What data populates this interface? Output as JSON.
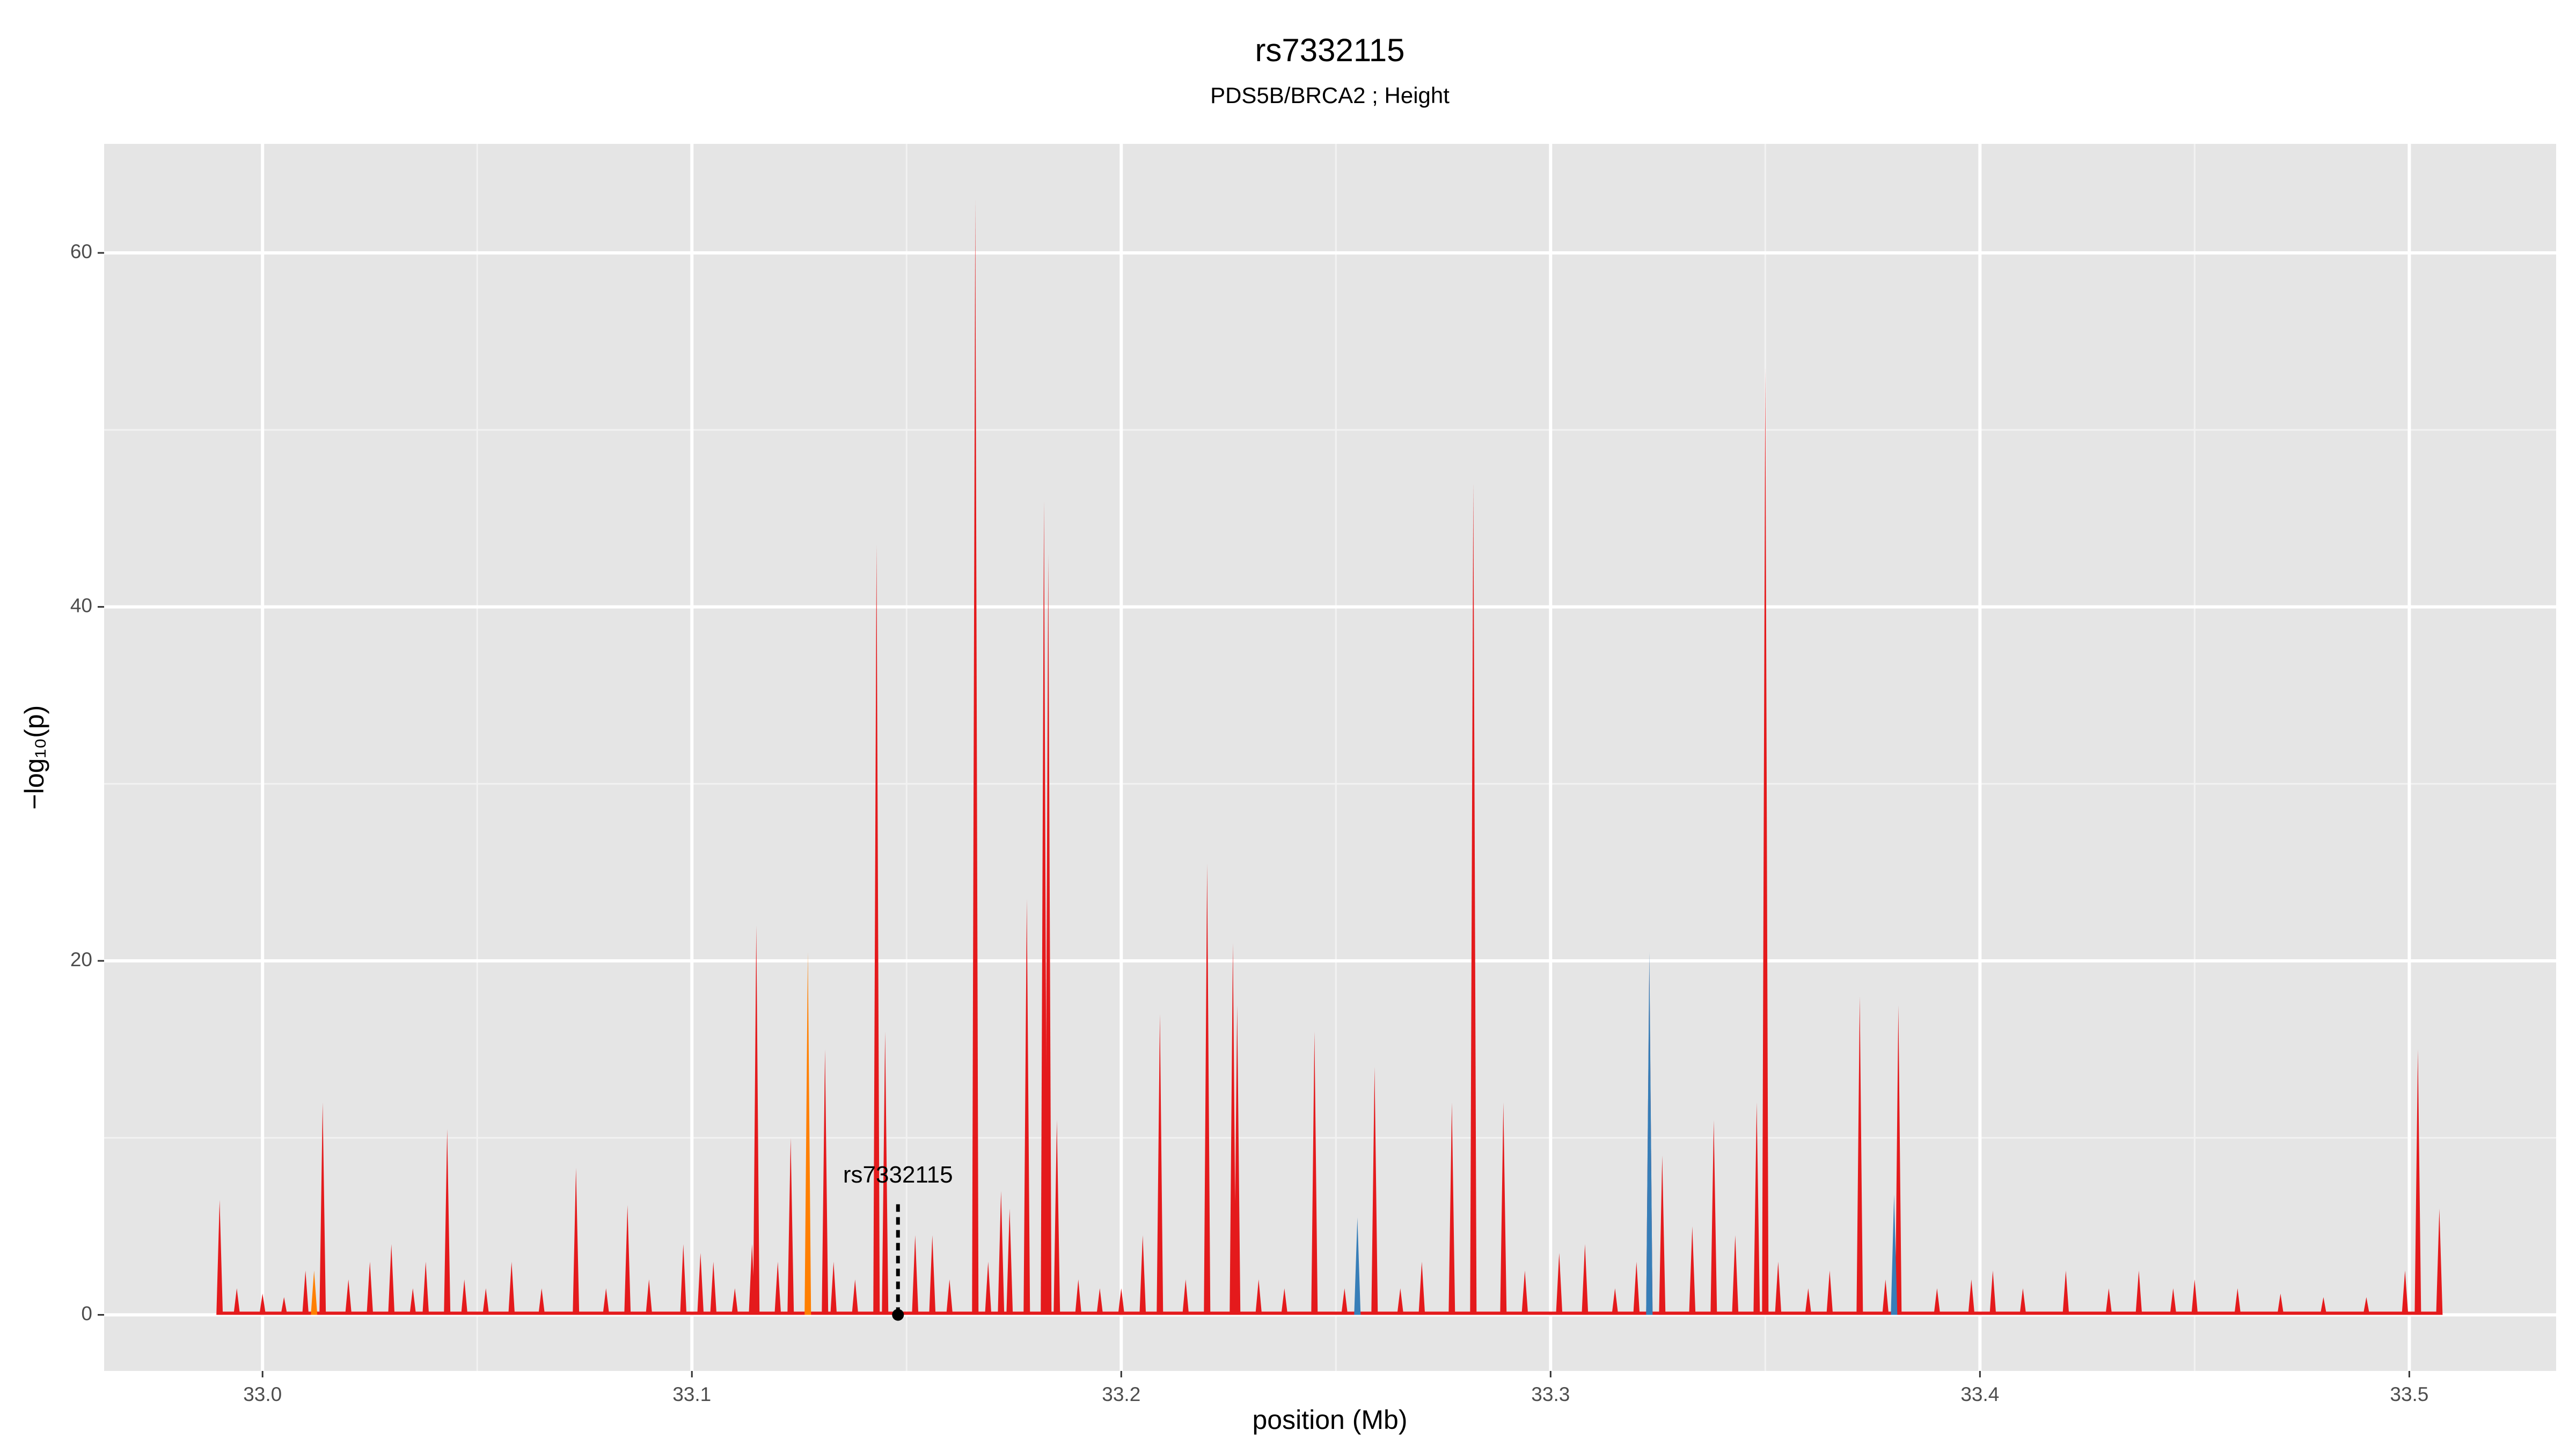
{
  "chart_data": {
    "type": "spike",
    "title": "rs7332115",
    "subtitle": "PDS5B/BRCA2 ; Height",
    "x_label": "position (Mb)",
    "y_label": "−log₁₀(p)",
    "xlim": [
      32.9631,
      33.5342
    ],
    "ylim": [
      -3.17,
      66.16
    ],
    "xticks": [
      {
        "value": 33.0,
        "label": "33.0"
      },
      {
        "value": 33.1,
        "label": "33.1"
      },
      {
        "value": 33.2,
        "label": "33.2"
      },
      {
        "value": 33.3,
        "label": "33.3"
      },
      {
        "value": 33.4,
        "label": "33.4"
      },
      {
        "value": 33.5,
        "label": "33.5"
      }
    ],
    "yticks": [
      0,
      20,
      40,
      60
    ],
    "grid": true,
    "annotation": {
      "label": "rs7332115",
      "x": 33.148,
      "y": 0
    },
    "series": [
      {
        "color": "#e41a1c",
        "x": [
          32.99,
          32.994,
          33.0,
          33.005,
          33.01,
          33.014,
          33.02,
          33.025,
          33.03,
          33.035,
          33.038,
          33.043,
          33.047,
          33.052,
          33.058,
          33.065,
          33.073,
          33.08,
          33.085,
          33.09,
          33.098,
          33.102,
          33.105,
          33.11,
          33.114,
          33.115,
          33.12,
          33.123,
          33.131,
          33.133,
          33.138,
          33.143,
          33.145,
          33.152,
          33.156,
          33.16,
          33.166,
          33.169,
          33.172,
          33.174,
          33.178,
          33.182,
          33.183,
          33.185,
          33.19,
          33.195,
          33.2,
          33.205,
          33.209,
          33.215,
          33.22,
          33.226,
          33.227,
          33.232,
          33.238,
          33.245,
          33.252,
          33.259,
          33.265,
          33.27,
          33.277,
          33.282,
          33.289,
          33.294,
          33.302,
          33.308,
          33.315,
          33.32,
          33.323,
          33.326,
          33.333,
          33.338,
          33.343,
          33.348,
          33.35,
          33.353,
          33.36,
          33.365,
          33.372,
          33.378,
          33.381,
          33.39,
          33.398,
          33.403,
          33.41,
          33.42,
          33.43,
          33.437,
          33.445,
          33.45,
          33.46,
          33.47,
          33.48,
          33.49,
          33.499,
          33.502,
          33.507
        ],
        "values": [
          6.5,
          1.5,
          1.2,
          1.0,
          2.5,
          12,
          2,
          3,
          4,
          1.5,
          3,
          10.5,
          2,
          1.5,
          3,
          1.5,
          8.3,
          1.5,
          6.2,
          2,
          4,
          3.5,
          3,
          1.5,
          4,
          22,
          3,
          10,
          15,
          3,
          2,
          43.5,
          16,
          4.5,
          4.5,
          2,
          63,
          3,
          7,
          6,
          23.5,
          46,
          43,
          11,
          2,
          1.5,
          1.5,
          4.5,
          17,
          2,
          25.5,
          21,
          17.5,
          2,
          1.5,
          16,
          1.5,
          14,
          1.5,
          3,
          12,
          47,
          12,
          2.5,
          3.5,
          4,
          1.5,
          3,
          20,
          9,
          5,
          11,
          4.5,
          12,
          53.5,
          3,
          1.5,
          2.5,
          18,
          2,
          17.5,
          1.5,
          2,
          2.5,
          1.5,
          2.5,
          1.5,
          2.5,
          1.5,
          2,
          1.5,
          1.2,
          1.0,
          1.0,
          2.5,
          15,
          6
        ]
      },
      {
        "color": "#377eb8",
        "x": [
          33.255,
          33.323,
          33.38
        ],
        "values": [
          5.5,
          20.5,
          6.8
        ]
      },
      {
        "color": "#ff7f00",
        "x": [
          33.012,
          33.127
        ],
        "values": [
          2.5,
          20.5
        ]
      }
    ]
  }
}
